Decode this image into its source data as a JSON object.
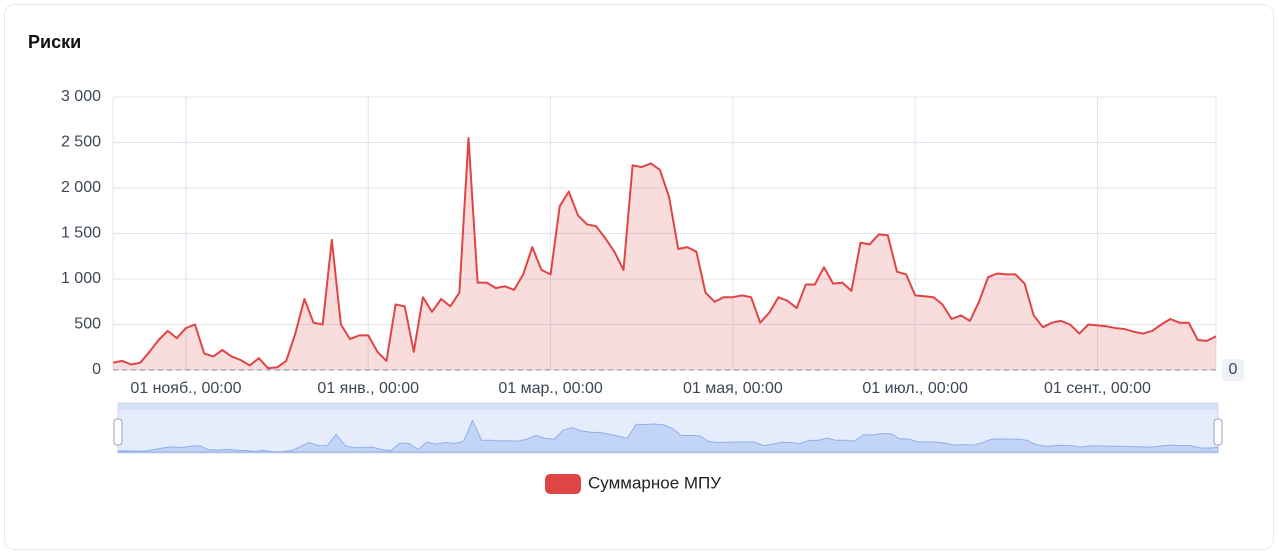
{
  "card_title": "Риски",
  "chart_data": {
    "type": "line",
    "categories": [
      null,
      null,
      null,
      null,
      null,
      null,
      null,
      null,
      "01 нояб., 00:00",
      null,
      null,
      null,
      null,
      null,
      null,
      null,
      null,
      null,
      null,
      null,
      null,
      null,
      null,
      null,
      null,
      null,
      null,
      null,
      "01 янв., 00:00",
      null,
      null,
      null,
      null,
      null,
      null,
      null,
      null,
      null,
      null,
      null,
      null,
      null,
      null,
      null,
      null,
      null,
      null,
      null,
      "01 мар., 00:00",
      null,
      null,
      null,
      null,
      null,
      null,
      null,
      null,
      null,
      null,
      null,
      null,
      null,
      null,
      null,
      null,
      null,
      null,
      null,
      "01 мая, 00:00",
      null,
      null,
      null,
      null,
      null,
      null,
      null,
      null,
      null,
      null,
      null,
      null,
      null,
      null,
      null,
      null,
      null,
      null,
      null,
      "01 июл., 00:00",
      null,
      null,
      null,
      null,
      null,
      null,
      null,
      null,
      null,
      null,
      null,
      null,
      null,
      null,
      null,
      null,
      null,
      null,
      null,
      "01 сент., 00:00",
      null,
      null,
      null,
      null,
      null,
      null,
      null,
      null,
      null,
      null,
      null,
      null,
      null
    ],
    "series": [
      {
        "name": "Суммарное МПУ",
        "color": "#e04545",
        "values": [
          80,
          100,
          60,
          80,
          200,
          330,
          430,
          350,
          460,
          500,
          180,
          150,
          220,
          150,
          110,
          50,
          130,
          20,
          30,
          100,
          400,
          780,
          520,
          500,
          1430,
          500,
          340,
          380,
          380,
          200,
          100,
          720,
          700,
          200,
          800,
          640,
          780,
          700,
          850,
          2550,
          960,
          960,
          900,
          920,
          880,
          1050,
          1350,
          1100,
          1050,
          1800,
          1960,
          1700,
          1600,
          1580,
          1450,
          1300,
          1100,
          2250,
          2230,
          2270,
          2200,
          1900,
          1330,
          1350,
          1300,
          850,
          750,
          800,
          800,
          820,
          800,
          520,
          630,
          800,
          760,
          680,
          940,
          940,
          1130,
          950,
          960,
          870,
          1400,
          1380,
          1490,
          1480,
          1080,
          1050,
          820,
          810,
          800,
          720,
          560,
          600,
          540,
          750,
          1020,
          1060,
          1050,
          1050,
          950,
          600,
          470,
          520,
          540,
          500,
          400,
          500,
          490,
          480,
          460,
          450,
          420,
          400,
          430,
          500,
          560,
          520,
          520,
          330,
          320,
          370
        ]
      }
    ],
    "ylim": [
      0,
      3000
    ],
    "yticks": [
      0,
      500,
      {
        "value": 1000,
        "label": "1 000"
      },
      {
        "value": 1500,
        "label": "1 500"
      },
      {
        "value": 2000,
        "label": "2 000"
      },
      {
        "value": 2500,
        "label": "2 500"
      },
      {
        "value": 3000,
        "label": "3 000"
      }
    ],
    "grid": true,
    "mark_line": 0
  }
}
